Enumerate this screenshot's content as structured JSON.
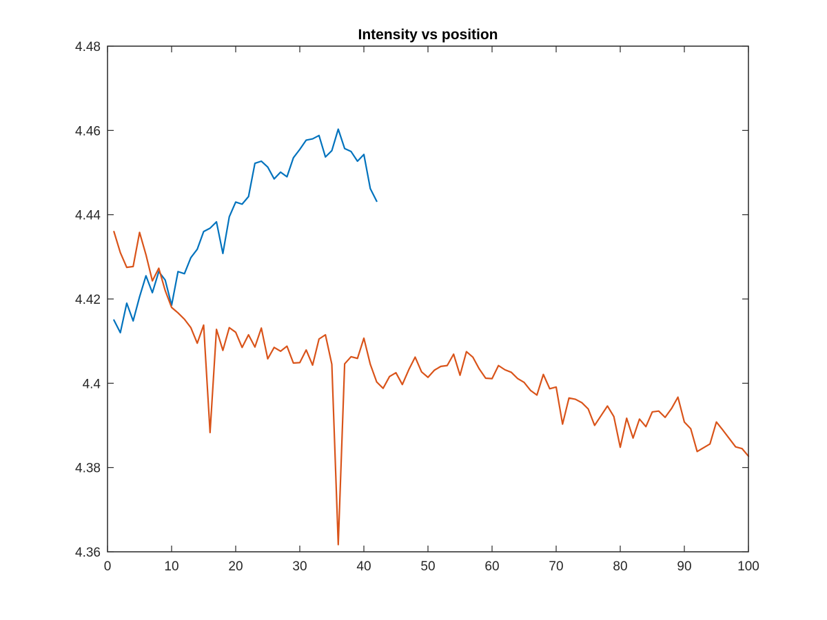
{
  "chart_data": {
    "type": "line",
    "title": "Intensity vs position",
    "xlabel": "",
    "ylabel": "",
    "xlim": [
      0,
      100
    ],
    "ylim": [
      4.36,
      4.48
    ],
    "x_ticks": [
      0,
      10,
      20,
      30,
      40,
      50,
      60,
      70,
      80,
      90,
      100
    ],
    "x_tick_labels": [
      "0",
      "10",
      "20",
      "30",
      "40",
      "50",
      "60",
      "70",
      "80",
      "90",
      "100"
    ],
    "y_ticks": [
      4.36,
      4.38,
      4.4,
      4.42,
      4.44,
      4.46,
      4.48
    ],
    "y_tick_labels": [
      "4.36",
      "4.38",
      "4.4",
      "4.42",
      "4.44",
      "4.46",
      "4.48"
    ],
    "grid": false,
    "legend": "none",
    "series": [
      {
        "color": "#0072bd",
        "x": [
          1,
          2,
          3,
          4,
          5,
          6,
          7,
          8,
          9,
          10,
          11,
          12,
          13,
          14,
          15,
          16,
          17,
          18,
          19,
          20,
          21,
          22,
          23,
          24,
          25,
          26,
          27,
          28,
          29,
          30,
          31,
          32,
          33,
          34,
          35,
          36,
          37,
          38,
          39,
          40,
          41,
          42
        ],
        "values": [
          4.415,
          4.412,
          4.419,
          4.4148,
          4.4205,
          4.4255,
          4.4215,
          4.4265,
          4.4245,
          4.4185,
          4.4265,
          4.426,
          4.4298,
          4.4318,
          4.436,
          4.4368,
          4.4383,
          4.4308,
          4.4395,
          4.443,
          4.4425,
          4.4443,
          4.4522,
          4.4527,
          4.4513,
          4.4485,
          4.4501,
          4.449,
          4.4535,
          4.4555,
          4.4577,
          4.458,
          4.4588,
          4.4537,
          4.4552,
          4.4603,
          4.4557,
          4.455,
          4.4527,
          4.4543,
          4.4462,
          4.4432
        ]
      },
      {
        "color": "#d95319",
        "x": [
          1,
          2,
          3,
          4,
          5,
          6,
          7,
          8,
          9,
          10,
          11,
          12,
          13,
          14,
          15,
          16,
          17,
          18,
          19,
          20,
          21,
          22,
          23,
          24,
          25,
          26,
          27,
          28,
          29,
          30,
          31,
          32,
          33,
          34,
          35,
          36,
          37,
          38,
          39,
          40,
          41,
          42,
          43,
          44,
          45,
          46,
          47,
          48,
          49,
          50,
          51,
          52,
          53,
          54,
          55,
          56,
          57,
          58,
          59,
          60,
          61,
          62,
          63,
          64,
          65,
          66,
          67,
          68,
          69,
          70,
          71,
          72,
          73,
          74,
          75,
          76,
          77,
          78,
          79,
          80,
          81,
          82,
          83,
          84,
          85,
          86,
          87,
          88,
          89,
          90,
          91,
          92,
          93,
          94,
          95,
          96,
          97,
          98,
          99,
          100
        ],
        "values": [
          4.436,
          4.431,
          4.4275,
          4.4277,
          4.4358,
          4.4305,
          4.4243,
          4.4273,
          4.422,
          4.418,
          4.4167,
          4.4152,
          4.4132,
          4.4095,
          4.4138,
          4.3883,
          4.4128,
          4.4078,
          4.4132,
          4.4121,
          4.4085,
          4.4115,
          4.4086,
          4.4131,
          4.4058,
          4.4085,
          4.4076,
          4.4088,
          4.4048,
          4.4049,
          4.4079,
          4.4043,
          4.4105,
          4.4115,
          4.4045,
          4.3617,
          4.4046,
          4.4063,
          4.4059,
          4.4107,
          4.4045,
          4.4003,
          4.3988,
          4.4016,
          4.4025,
          4.3997,
          4.4032,
          4.4062,
          4.4027,
          4.4014,
          4.4031,
          4.404,
          4.4042,
          4.4069,
          4.4019,
          4.4075,
          4.4062,
          4.4034,
          4.4012,
          4.4011,
          4.4042,
          4.4032,
          4.4026,
          4.4011,
          4.4002,
          4.3983,
          4.3972,
          4.4021,
          4.3987,
          4.3991,
          4.3903,
          4.3965,
          4.3962,
          4.3954,
          4.3939,
          4.39,
          4.3923,
          4.3946,
          4.3921,
          4.3848,
          4.3917,
          4.387,
          4.3915,
          4.3897,
          4.3932,
          4.3934,
          4.3919,
          4.394,
          4.3967,
          4.3908,
          4.3892,
          4.3838,
          4.3847,
          4.3856,
          4.3908,
          4.3889,
          4.3869,
          4.3849,
          4.3845,
          4.3827
        ]
      }
    ]
  }
}
